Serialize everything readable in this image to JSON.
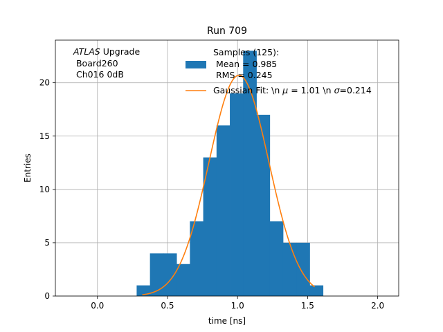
{
  "chart_data": {
    "type": "bar",
    "title": "Run 709",
    "xlabel": "time [ns]",
    "ylabel": "Entries",
    "xlim": [
      -0.3,
      2.15
    ],
    "ylim": [
      0,
      24
    ],
    "xticks": [
      0.0,
      0.5,
      1.0,
      1.5,
      2.0
    ],
    "xtick_labels": [
      "0.0",
      "0.5",
      "1.0",
      "1.5",
      "2.0"
    ],
    "yticks": [
      0,
      5,
      10,
      15,
      20
    ],
    "ytick_labels": [
      "0",
      "5",
      "10",
      "15",
      "20"
    ],
    "grid": true,
    "bin_edges": [
      0.28,
      0.375,
      0.47,
      0.565,
      0.66,
      0.755,
      0.85,
      0.945,
      1.04,
      1.135,
      1.23,
      1.325,
      1.42,
      1.515,
      1.61
    ],
    "counts": [
      1,
      4,
      4,
      3,
      7,
      13,
      16,
      19,
      23,
      17,
      7,
      5,
      5,
      1
    ],
    "fit": {
      "amplitude": 20.7,
      "mu": 1.01,
      "sigma": 0.214,
      "x_range": [
        0.32,
        1.55
      ]
    },
    "bar_color": "#1f77b4",
    "fit_color": "#ff7f0e",
    "legend": {
      "position": "top-center",
      "hist_label": [
        "Samples (125):",
        " Mean = 0.985",
        " RMS = 0.245"
      ],
      "fit_label_prefix": "Gaussian Fit: \\n ",
      "fit_label_mu": "μ",
      "fit_label_mid": " = 1.01 \\n ",
      "fit_label_sigma": "σ",
      "fit_label_suffix": "=0.214"
    },
    "annotation": {
      "position": "top-left",
      "italic": "ATLAS",
      "rest": " Upgrade",
      "line2": " Board260",
      "line3": " Ch016 0dB"
    }
  }
}
